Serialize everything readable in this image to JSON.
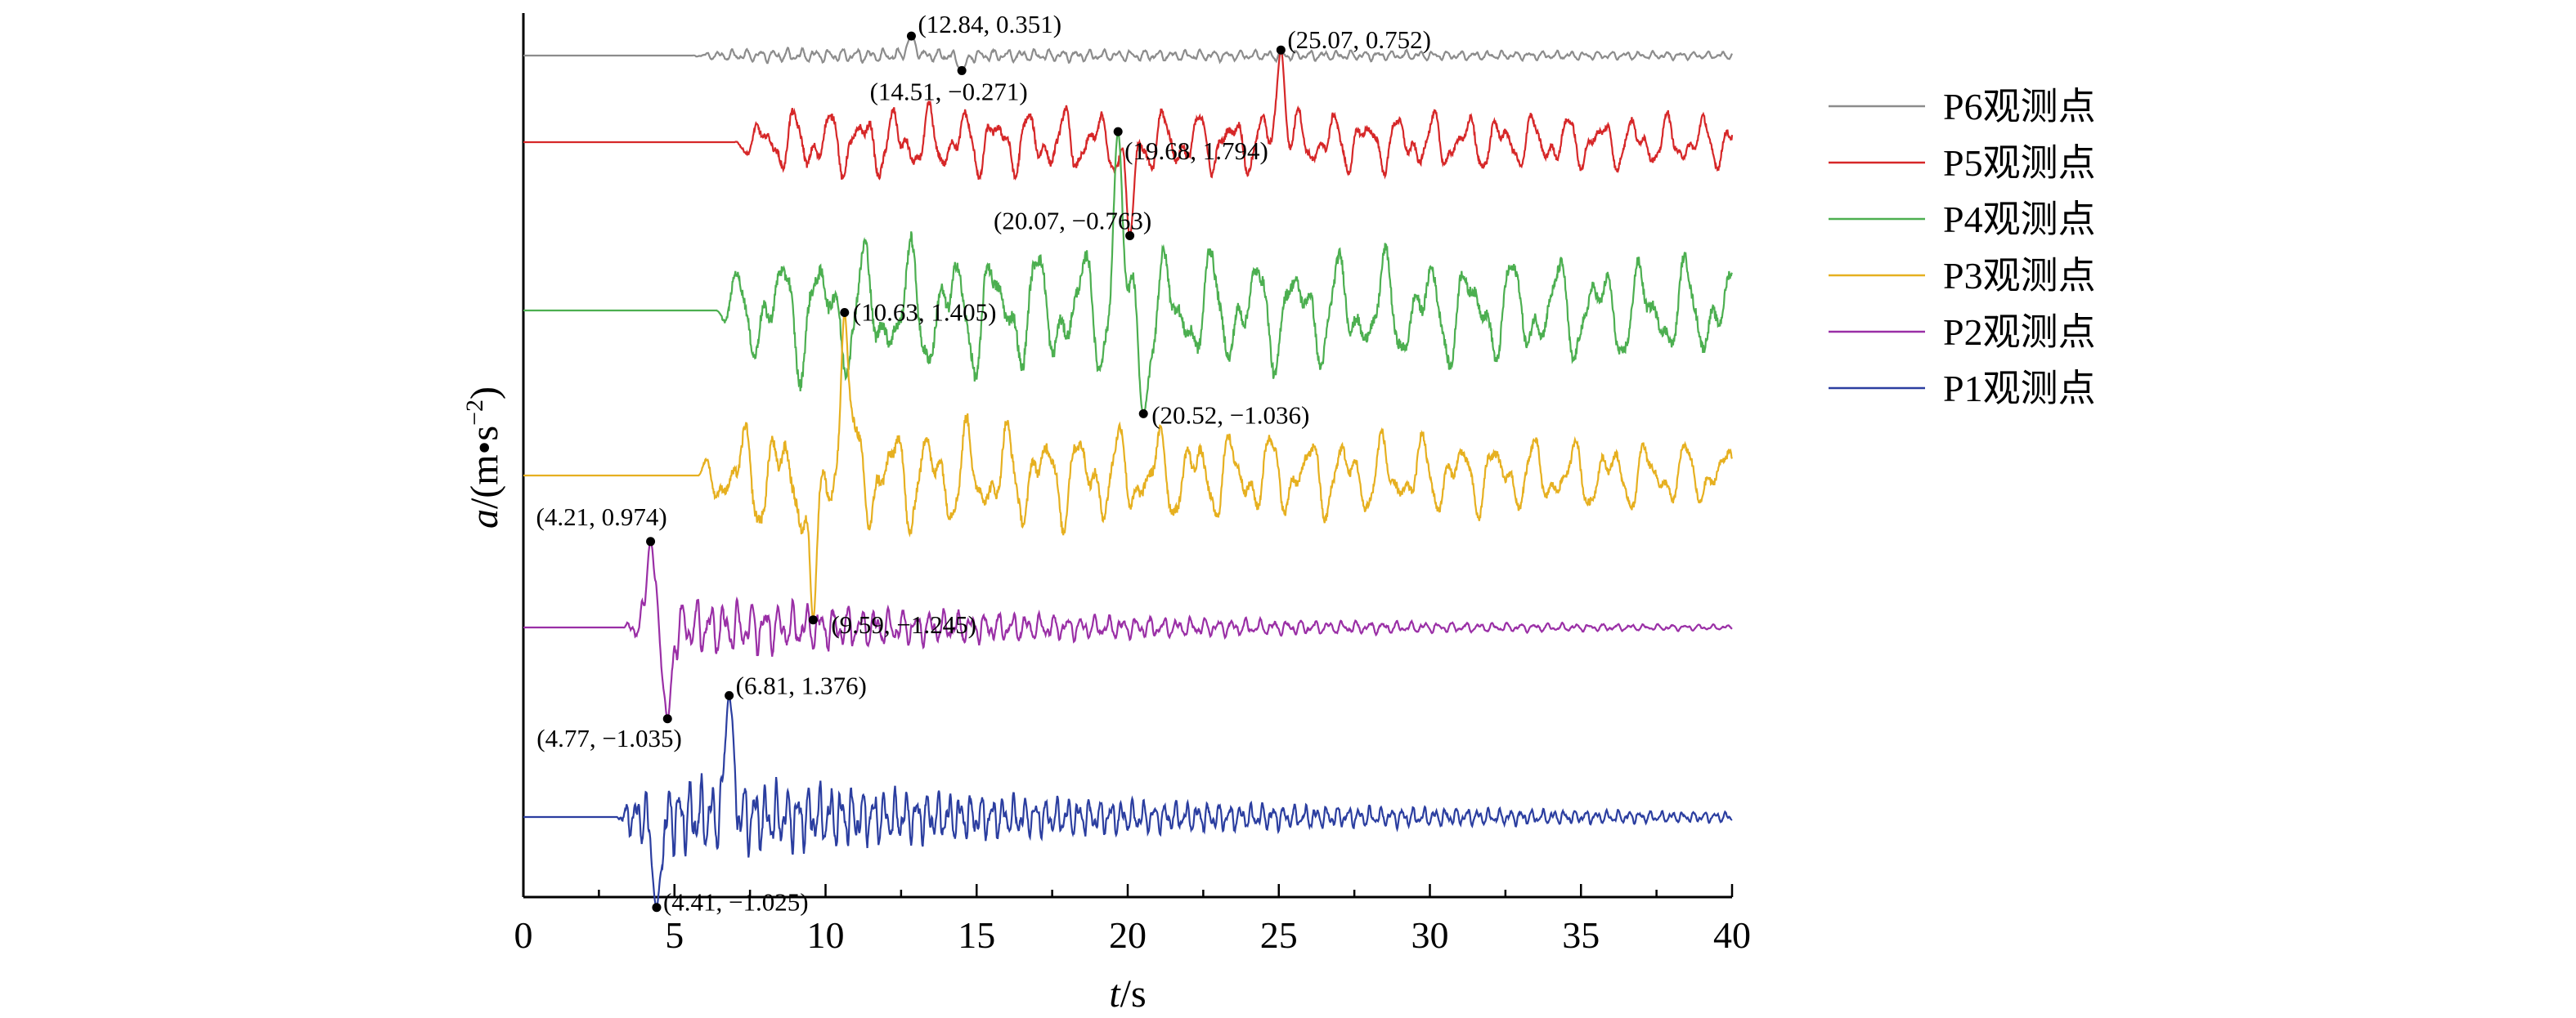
{
  "chart_data": {
    "type": "line",
    "xlabel_var": "t",
    "xlabel_unit": "s",
    "ylabel_var": "a",
    "ylabel_unit": "(m•s",
    "ylabel_exp": "−2",
    "ylabel_close": ")",
    "xlim": [
      0,
      40
    ],
    "x_ticks": [
      "0",
      "5",
      "10",
      "15",
      "20",
      "25",
      "30",
      "35",
      "40"
    ],
    "legend_position": "top-right",
    "grid": false,
    "series": [
      {
        "name": "P6观测点",
        "color": "#8c8c8c",
        "onset": 5.6,
        "decay": 0.02,
        "freq": 2.2,
        "extremes": [
          {
            "label": "(12.84, 0.351)",
            "x": 12.84,
            "y": 0.351
          },
          {
            "label": "(14.51, −0.271)",
            "x": 14.51,
            "y": -0.271
          }
        ]
      },
      {
        "name": "P5观测点",
        "color": "#d62728",
        "onset": 7.0,
        "decay": 0.01,
        "freq": 0.9,
        "extremes": [
          {
            "label": "(25.07, 0.752)",
            "x": 25.07,
            "y": 0.752
          },
          {
            "label": "(20.07, −0.763)",
            "x": 20.07,
            "y": -0.763
          }
        ]
      },
      {
        "name": "P4观测点",
        "color": "#4caf50",
        "onset": 6.4,
        "decay": 0.01,
        "freq": 0.7,
        "extremes": [
          {
            "label": "(19.68, 1.794)",
            "x": 19.68,
            "y": 1.794
          },
          {
            "label": "(20.52, −1.036)",
            "x": 20.52,
            "y": -1.036
          }
        ]
      },
      {
        "name": "P3观测点",
        "color": "#e6b020",
        "onset": 5.8,
        "decay": 0.02,
        "freq": 0.8,
        "extremes": [
          {
            "label": "(10.63, 1.405)",
            "x": 10.63,
            "y": 1.405
          },
          {
            "label": "(9.59, −1.245)",
            "x": 9.59,
            "y": -1.245
          }
        ]
      },
      {
        "name": "P2观测点",
        "color": "#9a2fa6",
        "onset": 3.3,
        "decay": 0.07,
        "freq": 2.2,
        "extremes": [
          {
            "label": "(4.21, 0.974)",
            "x": 4.21,
            "y": 0.974
          },
          {
            "label": "(4.77, −1.035)",
            "x": 4.77,
            "y": -1.035
          }
        ]
      },
      {
        "name": "P1观测点",
        "color": "#2b3ea0",
        "onset": 3.1,
        "decay": 0.06,
        "freq": 2.8,
        "extremes": [
          {
            "label": "(6.81, 1.376)",
            "x": 6.81,
            "y": 1.376
          },
          {
            "label": "(4.41, −1.025)",
            "x": 4.41,
            "y": -1.025
          }
        ]
      }
    ]
  }
}
